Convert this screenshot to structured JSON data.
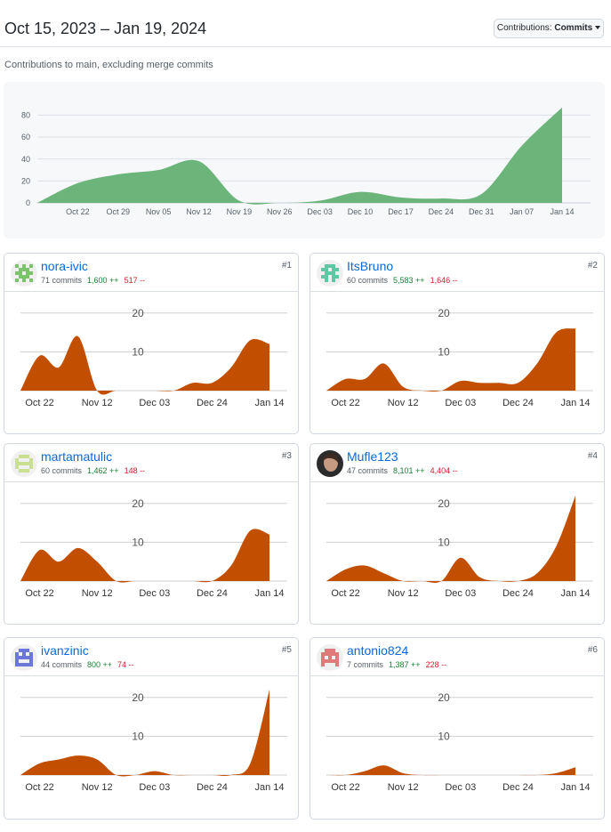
{
  "header": {
    "date_range": "Oct 15, 2023 – Jan 19, 2024",
    "dropdown_prefix": "Contributions:",
    "dropdown_value": "Commits"
  },
  "subtitle": "Contributions to main, excluding merge commits",
  "chart_data": [
    {
      "type": "area",
      "title": "",
      "x": [
        "Oct 15",
        "Oct 22",
        "Oct 29",
        "Nov 05",
        "Nov 12",
        "Nov 19",
        "Nov 26",
        "Dec 03",
        "Dec 10",
        "Dec 17",
        "Dec 24",
        "Dec 31",
        "Jan 07",
        "Jan 14"
      ],
      "xticks": [
        "Oct 22",
        "Oct 29",
        "Nov 05",
        "Nov 12",
        "Nov 19",
        "Nov 26",
        "Dec 03",
        "Dec 10",
        "Dec 17",
        "Dec 24",
        "Dec 31",
        "Jan 07",
        "Jan 14"
      ],
      "yticks": [
        0,
        20,
        40,
        60,
        80
      ],
      "ylim": [
        0,
        90
      ],
      "series": [
        {
          "values": [
            0,
            18,
            26,
            30,
            38,
            2,
            0,
            2,
            10,
            5,
            4,
            8,
            52,
            87
          ]
        }
      ],
      "color": "#6bb57b"
    },
    {
      "type": "area",
      "user": "nora-ivic",
      "rank": "#1",
      "x": [
        "Oct 15",
        "Oct 22",
        "Oct 29",
        "Nov 05",
        "Nov 12",
        "Nov 19",
        "Nov 26",
        "Dec 03",
        "Dec 10",
        "Dec 17",
        "Dec 24",
        "Dec 31",
        "Jan 07",
        "Jan 14"
      ],
      "xticks": [
        "Oct 22",
        "Nov 12",
        "Dec 03",
        "Dec 24",
        "Jan 14"
      ],
      "yticks": [
        10,
        20
      ],
      "ylim": [
        0,
        22
      ],
      "series": [
        {
          "values": [
            0,
            9,
            6,
            14,
            0,
            0,
            0,
            0,
            0,
            2,
            2,
            6,
            13,
            12
          ]
        }
      ],
      "color": "#c24e00"
    },
    {
      "type": "area",
      "user": "ItsBruno",
      "rank": "#2",
      "x": [
        "Oct 15",
        "Oct 22",
        "Oct 29",
        "Nov 05",
        "Nov 12",
        "Nov 19",
        "Nov 26",
        "Dec 03",
        "Dec 10",
        "Dec 17",
        "Dec 24",
        "Dec 31",
        "Jan 07",
        "Jan 14"
      ],
      "xticks": [
        "Oct 22",
        "Nov 12",
        "Dec 03",
        "Dec 24",
        "Jan 14"
      ],
      "yticks": [
        10,
        20
      ],
      "ylim": [
        0,
        22
      ],
      "series": [
        {
          "values": [
            0,
            3,
            3,
            7,
            1,
            0,
            0,
            2.5,
            2,
            2,
            2,
            7,
            15,
            16
          ]
        }
      ],
      "color": "#c24e00"
    },
    {
      "type": "area",
      "user": "martamatulic",
      "rank": "#3",
      "x": [
        "Oct 15",
        "Oct 22",
        "Oct 29",
        "Nov 05",
        "Nov 12",
        "Nov 19",
        "Nov 26",
        "Dec 03",
        "Dec 10",
        "Dec 17",
        "Dec 24",
        "Dec 31",
        "Jan 07",
        "Jan 14"
      ],
      "xticks": [
        "Oct 22",
        "Nov 12",
        "Dec 03",
        "Dec 24",
        "Jan 14"
      ],
      "yticks": [
        10,
        20
      ],
      "ylim": [
        0,
        22
      ],
      "series": [
        {
          "values": [
            0,
            8,
            5,
            8.5,
            5,
            0,
            0,
            0,
            0,
            0,
            0,
            4,
            13,
            12
          ]
        }
      ],
      "color": "#c24e00"
    },
    {
      "type": "area",
      "user": "Mufle123",
      "rank": "#4",
      "x": [
        "Oct 15",
        "Oct 22",
        "Oct 29",
        "Nov 05",
        "Nov 12",
        "Nov 19",
        "Nov 26",
        "Dec 03",
        "Dec 10",
        "Dec 17",
        "Dec 24",
        "Dec 31",
        "Jan 07",
        "Jan 14"
      ],
      "xticks": [
        "Oct 22",
        "Nov 12",
        "Dec 03",
        "Dec 24",
        "Jan 14"
      ],
      "yticks": [
        10,
        20
      ],
      "ylim": [
        0,
        22
      ],
      "series": [
        {
          "values": [
            0,
            3,
            4,
            2,
            0,
            0,
            0,
            6,
            1,
            0,
            0,
            2,
            9,
            22
          ]
        }
      ],
      "color": "#c24e00"
    },
    {
      "type": "area",
      "user": "ivanzinic",
      "rank": "#5",
      "x": [
        "Oct 15",
        "Oct 22",
        "Oct 29",
        "Nov 05",
        "Nov 12",
        "Nov 19",
        "Nov 26",
        "Dec 03",
        "Dec 10",
        "Dec 17",
        "Dec 24",
        "Dec 31",
        "Jan 07",
        "Jan 14"
      ],
      "xticks": [
        "Oct 22",
        "Nov 12",
        "Dec 03",
        "Dec 24",
        "Jan 14"
      ],
      "yticks": [
        10,
        20
      ],
      "ylim": [
        0,
        22
      ],
      "series": [
        {
          "values": [
            0,
            3,
            4,
            5,
            4,
            0,
            0,
            1,
            0,
            0,
            0,
            0,
            3,
            22
          ]
        }
      ],
      "color": "#c24e00"
    },
    {
      "type": "area",
      "user": "antonio824",
      "rank": "#6",
      "x": [
        "Oct 15",
        "Oct 22",
        "Oct 29",
        "Nov 05",
        "Nov 12",
        "Nov 19",
        "Nov 26",
        "Dec 03",
        "Dec 10",
        "Dec 17",
        "Dec 24",
        "Dec 31",
        "Jan 07",
        "Jan 14"
      ],
      "xticks": [
        "Oct 22",
        "Nov 12",
        "Dec 03",
        "Dec 24",
        "Jan 14"
      ],
      "yticks": [
        10,
        20
      ],
      "ylim": [
        0,
        22
      ],
      "series": [
        {
          "values": [
            0,
            0,
            1,
            2.5,
            0.5,
            0,
            0,
            0,
            0,
            0,
            0,
            0,
            0.5,
            2
          ]
        }
      ],
      "color": "#c24e00"
    }
  ],
  "contributors": [
    {
      "name": "nora-ivic",
      "commits": "71 commits",
      "additions": "1,600 ++",
      "deletions": "517 --",
      "rank": "#1"
    },
    {
      "name": "ItsBruno",
      "commits": "60 commits",
      "additions": "5,583 ++",
      "deletions": "1,646 --",
      "rank": "#2"
    },
    {
      "name": "martamatulic",
      "commits": "60 commits",
      "additions": "1,462 ++",
      "deletions": "148 --",
      "rank": "#3"
    },
    {
      "name": "Mufle123",
      "commits": "47 commits",
      "additions": "8,101 ++",
      "deletions": "4,404 --",
      "rank": "#4"
    },
    {
      "name": "ivanzinic",
      "commits": "44 commits",
      "additions": "800 ++",
      "deletions": "74 --",
      "rank": "#5"
    },
    {
      "name": "antonio824",
      "commits": "7 commits",
      "additions": "1,387 ++",
      "deletions": "228 --",
      "rank": "#6"
    }
  ],
  "avatars": [
    {
      "icon": "identicon-icon",
      "color": "#7cc46b"
    },
    {
      "icon": "identicon-icon",
      "color": "#5fc7a3"
    },
    {
      "icon": "identicon-icon",
      "color": "#c8e08f"
    },
    {
      "icon": "photo-avatar-icon",
      "color": "#3a3a3a"
    },
    {
      "icon": "identicon-icon",
      "color": "#6b78d9"
    },
    {
      "icon": "identicon-icon",
      "color": "#e07a7a"
    }
  ]
}
